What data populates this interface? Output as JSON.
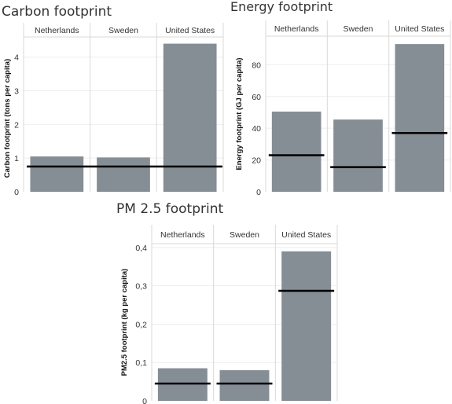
{
  "colors": {
    "bar": "#868e95",
    "reference_line": "#000000",
    "gridline": "#eeeeee",
    "divider": "#d9d9d9"
  },
  "chart_data": [
    {
      "type": "bar",
      "title": "Carbon footprint",
      "ylabel": "Carbon footprint (tons per capita)",
      "categories": [
        "Netherlands",
        "Sweden",
        "United States"
      ],
      "values": [
        1.05,
        1.02,
        4.4
      ],
      "reference_values": [
        0.75,
        0.75,
        0.75
      ],
      "ylim": [
        0,
        4.6
      ],
      "yticks": [
        0,
        1,
        2,
        3,
        4
      ],
      "ytick_labels": [
        "0",
        "1",
        "2",
        "3",
        "4"
      ],
      "grid": true
    },
    {
      "type": "bar",
      "title": "Energy footprint",
      "ylabel": "Energy footprint (GJ per capita)",
      "categories": [
        "Netherlands",
        "Sweden",
        "United States"
      ],
      "values": [
        50.5,
        45.5,
        93
      ],
      "reference_values": [
        23,
        15.5,
        37
      ],
      "ylim": [
        0,
        98
      ],
      "yticks": [
        0,
        20,
        40,
        60,
        80
      ],
      "ytick_labels": [
        "0",
        "20",
        "40",
        "60",
        "80"
      ],
      "grid": true
    },
    {
      "type": "bar",
      "title": "PM 2.5 footprint",
      "ylabel": "PM2.5 footprint (kg per capita)",
      "categories": [
        "Netherlands",
        "Sweden",
        "United States"
      ],
      "values": [
        0.085,
        0.08,
        0.39
      ],
      "reference_values": [
        0.045,
        0.045,
        0.287
      ],
      "ylim": [
        0,
        0.41
      ],
      "yticks": [
        0,
        0.1,
        0.2,
        0.3,
        0.4
      ],
      "ytick_labels": [
        "0",
        "0,1",
        "0,2",
        "0,3",
        "0,4"
      ],
      "grid": true
    }
  ]
}
